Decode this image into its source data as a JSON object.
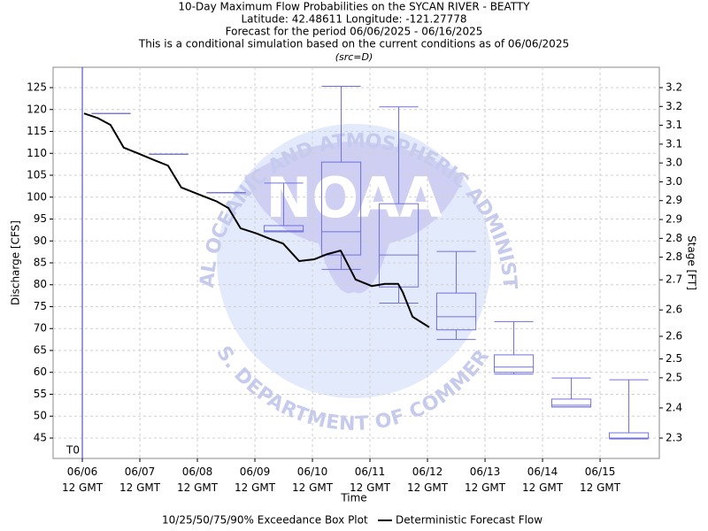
{
  "chart_data": {
    "type": "box",
    "title": "10-Day Maximum Flow Probabilities on the SYCAN RIVER - BEATTY",
    "subtitle_lines": [
      "Latitude: 42.48611 Longitude: -121.27778",
      "Forecast for the period 06/06/2025 - 06/16/2025",
      "This is a conditional simulation based on the current conditions as of 06/06/2025"
    ],
    "source_note": "(src=D)",
    "xlabel": "Time",
    "ylabel": "Discharge [CFS]",
    "y2label": "Stage [FT]",
    "xlim": [
      -0.508,
      10.03
    ],
    "xticks": [
      {
        "value": 0,
        "label": "06/06 12 GMT"
      },
      {
        "value": 1,
        "label": "06/07 12 GMT"
      },
      {
        "value": 2,
        "label": "06/08 12 GMT"
      },
      {
        "value": 3,
        "label": "06/09 12 GMT"
      },
      {
        "value": 4,
        "label": "06/10 12 GMT"
      },
      {
        "value": 5,
        "label": "06/11 12 GMT"
      },
      {
        "value": 6,
        "label": "06/12 12 GMT"
      },
      {
        "value": 7,
        "label": "06/13 12 GMT"
      },
      {
        "value": 8,
        "label": "06/14 12 GMT"
      },
      {
        "value": 9,
        "label": "06/15 12 GMT"
      }
    ],
    "ylim": [
      40.35,
      129.65
    ],
    "yticks": [
      125,
      120,
      115,
      110,
      105,
      100,
      95,
      90,
      85,
      80,
      75,
      70,
      65,
      60,
      55,
      50,
      45
    ],
    "y2lim": [
      2.246,
      3.284
    ],
    "y2ticks": [
      {
        "value": 3.23,
        "label": "3.2"
      },
      {
        "value": 3.18,
        "label": "3.2"
      },
      {
        "value": 3.13,
        "label": "3.1"
      },
      {
        "value": 3.08,
        "label": "3.1"
      },
      {
        "value": 3.03,
        "label": "3.0"
      },
      {
        "value": 2.98,
        "label": "3.0"
      },
      {
        "value": 2.93,
        "label": "2.9"
      },
      {
        "value": 2.88,
        "label": "2.9"
      },
      {
        "value": 2.83,
        "label": "2.8"
      },
      {
        "value": 2.78,
        "label": "2.8"
      },
      {
        "value": 2.72,
        "label": "2.7"
      },
      {
        "value": 2.64,
        "label": "2.6"
      },
      {
        "value": 2.57,
        "label": "2.6"
      },
      {
        "value": 2.51,
        "label": "2.5"
      },
      {
        "value": 2.46,
        "label": "2.5"
      },
      {
        "value": 2.38,
        "label": "2.4"
      },
      {
        "value": 2.3,
        "label": "2.3"
      }
    ],
    "grid": true,
    "t0": {
      "label": "T0",
      "x": 0,
      "color": "#3333cc"
    },
    "boxes": {
      "name": "10/25/50/75/90% Exceedance Box Plot",
      "color": "#7070dd",
      "x": [
        0.5,
        1.5,
        2.5,
        3.5,
        4.5,
        5.5,
        6.5,
        7.5,
        8.5,
        9.5
      ],
      "p10": [
        119.1,
        109.8,
        101.0,
        92.1,
        83.5,
        75.8,
        67.5,
        59.6,
        52.1,
        44.8
      ],
      "p25": [
        119.1,
        109.8,
        101.0,
        92.1,
        86.8,
        79.5,
        69.7,
        60.0,
        52.1,
        45.0
      ],
      "p50": [
        119.1,
        109.8,
        101.0,
        92.3,
        92.1,
        86.8,
        72.7,
        61.2,
        52.5,
        45.0
      ],
      "p75": [
        119.1,
        109.8,
        101.0,
        93.5,
        108.0,
        98.5,
        78.1,
        64.0,
        53.9,
        46.2
      ],
      "p90": [
        119.1,
        109.8,
        101.0,
        103.2,
        125.3,
        120.6,
        87.6,
        71.6,
        58.7,
        58.3
      ]
    },
    "line": {
      "name": "Deterministic Forecast Flow",
      "color": "#000000",
      "x": [
        0.03,
        0.26,
        0.49,
        0.72,
        0.95,
        1.26,
        1.49,
        1.72,
        2.03,
        2.34,
        2.54,
        2.75,
        3.03,
        3.26,
        3.49,
        3.77,
        4.03,
        4.26,
        4.49,
        4.57,
        4.75,
        5.03,
        5.26,
        5.49,
        5.57,
        5.74,
        6.03
      ],
      "values": [
        119.1,
        118.1,
        116.5,
        111.3,
        110.1,
        108.4,
        107.2,
        102.2,
        100.6,
        99.0,
        97.5,
        92.9,
        91.7,
        90.5,
        89.4,
        85.4,
        85.8,
        87.0,
        87.8,
        85.8,
        81.2,
        79.7,
        80.2,
        80.2,
        78.3,
        72.7,
        70.3
      ]
    },
    "watermark": {
      "logo": "NOAA",
      "top": "NATIONAL OCEANIC AND ATMOSPHERIC ADMINISTRATION",
      "bottom": "U.S. DEPARTMENT OF COMMERCE"
    }
  }
}
